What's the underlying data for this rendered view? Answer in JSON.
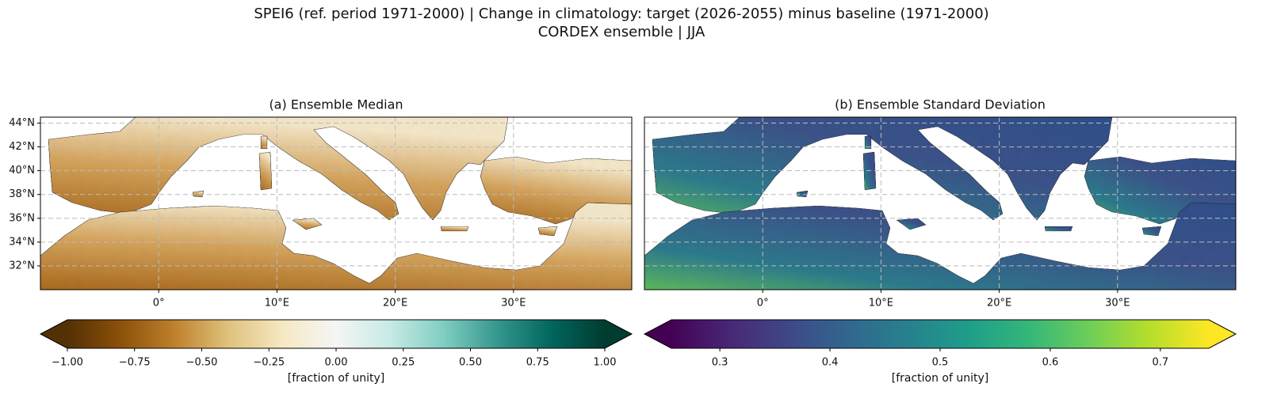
{
  "title": "SPEI6 (ref. period 1971-2000) | Change in climatology: target (2026-2055) minus baseline (1971-2000)",
  "subtitle": "CORDEX ensemble | JJA",
  "panels": [
    {
      "title": "(a) Ensemble Median",
      "xlim": [
        -10,
        40
      ],
      "ylim": [
        30,
        44.5
      ],
      "xticks": [
        {
          "value": 0,
          "label": "0°"
        },
        {
          "value": 10,
          "label": "10°E"
        },
        {
          "value": 20,
          "label": "20°E"
        },
        {
          "value": 30,
          "label": "30°E"
        }
      ],
      "yticks": [
        {
          "value": 32,
          "label": "32°N"
        },
        {
          "value": 34,
          "label": "34°N"
        },
        {
          "value": 36,
          "label": "36°N"
        },
        {
          "value": 38,
          "label": "38°N"
        },
        {
          "value": 40,
          "label": "40°N"
        },
        {
          "value": 42,
          "label": "42°N"
        },
        {
          "value": 44,
          "label": "44°N"
        }
      ],
      "grid": true,
      "colorbar": {
        "colors": [
          "#543005",
          "#8c510a",
          "#bf812d",
          "#dfc27d",
          "#f6e8c3",
          "#f5f5f5",
          "#c7eae5",
          "#80cdc1",
          "#35978f",
          "#01665e",
          "#003c30"
        ],
        "lim": [
          -1,
          1
        ],
        "extend": "both",
        "ticks": [
          {
            "value": -1,
            "label": "−1.00"
          },
          {
            "value": -0.75,
            "label": "−0.75"
          },
          {
            "value": -0.5,
            "label": "−0.50"
          },
          {
            "value": -0.25,
            "label": "−0.25"
          },
          {
            "value": 0,
            "label": "0.00"
          },
          {
            "value": 0.25,
            "label": "0.25"
          },
          {
            "value": 0.5,
            "label": "0.50"
          },
          {
            "value": 0.75,
            "label": "0.75"
          },
          {
            "value": 1,
            "label": "1.00"
          }
        ],
        "label": "[fraction of unity]"
      }
    },
    {
      "title": "(b) Ensemble Standard Deviation",
      "xlim": [
        -10,
        40
      ],
      "ylim": [
        30,
        44.5
      ],
      "xticks": [
        {
          "value": 0,
          "label": "0°"
        },
        {
          "value": 10,
          "label": "10°E"
        },
        {
          "value": 20,
          "label": "20°E"
        },
        {
          "value": 30,
          "label": "30°E"
        }
      ],
      "grid": true,
      "colorbar": {
        "colors": [
          "#440154",
          "#482878",
          "#3e4989",
          "#31688e",
          "#26828e",
          "#1f9e89",
          "#35b779",
          "#6ece58",
          "#b5de2b",
          "#fde725"
        ],
        "lim": [
          0.256,
          0.744
        ],
        "extend": "both",
        "ticks": [
          0.3,
          0.4,
          0.5,
          0.6,
          0.7
        ],
        "label": "[fraction of unity]"
      }
    }
  ]
}
